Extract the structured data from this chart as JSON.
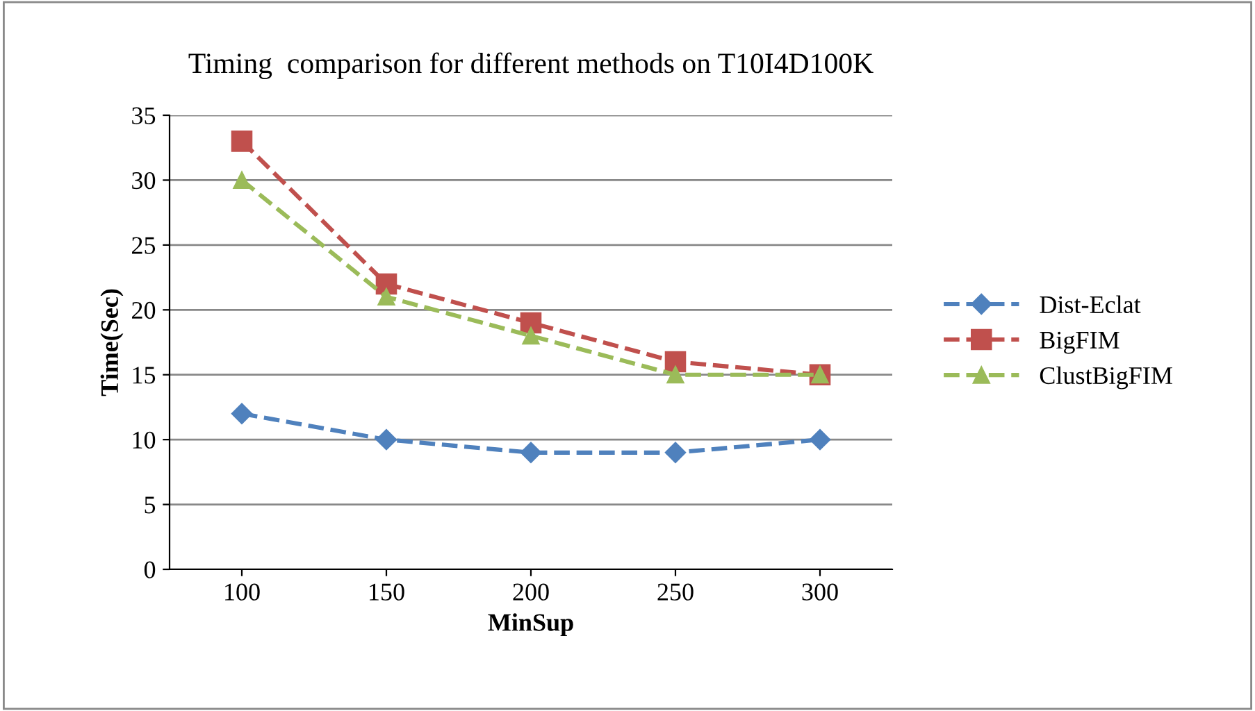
{
  "chart_data": {
    "type": "line",
    "title": "Timing  comparison for different methods on T10I4D100K",
    "xlabel": "MinSup",
    "ylabel": "Time(Sec)",
    "categories": [
      "100",
      "150",
      "200",
      "250",
      "300"
    ],
    "series": [
      {
        "name": "Dist-Eclat",
        "color": "#4f81bd",
        "marker": "diamond",
        "values": [
          12,
          10,
          9,
          9,
          10
        ]
      },
      {
        "name": "BigFIM",
        "color": "#c0504d",
        "marker": "square",
        "values": [
          33,
          22,
          19,
          16,
          15
        ]
      },
      {
        "name": "ClustBigFIM",
        "color": "#9bbb59",
        "marker": "triangle",
        "values": [
          30,
          21,
          18,
          15,
          15
        ]
      }
    ],
    "ylim": [
      0,
      35
    ],
    "yticks": [
      0,
      5,
      10,
      15,
      20,
      25,
      30,
      35
    ],
    "grid": "y",
    "legend": "right",
    "line_style": "dashed"
  }
}
